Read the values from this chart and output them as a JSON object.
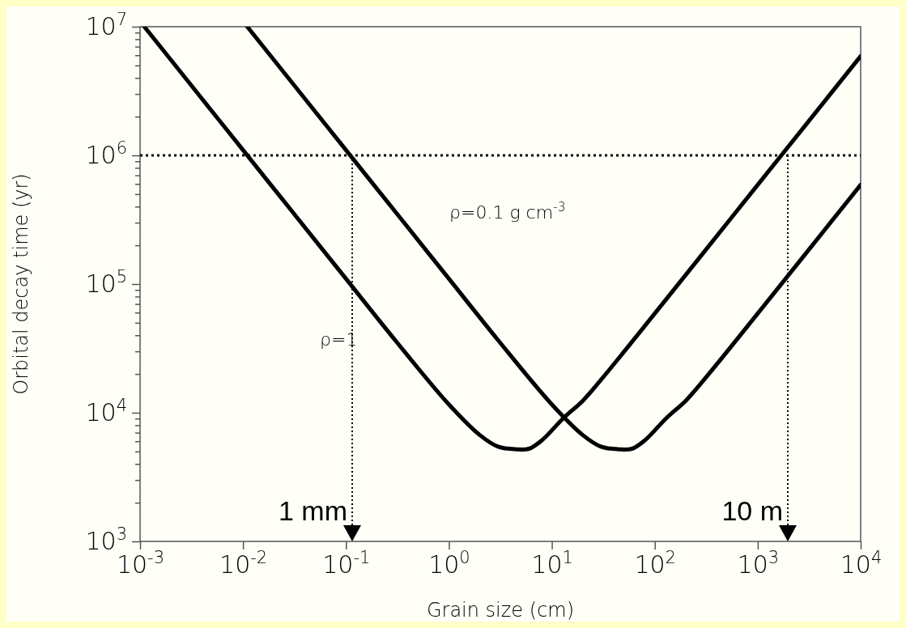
{
  "chart_data": {
    "type": "line",
    "xlabel": "Grain size (cm)",
    "ylabel": "Orbital decay time (yr)",
    "log": "xy",
    "xlim": [
      0.001,
      10000
    ],
    "ylim": [
      1000,
      10000000
    ],
    "xticks": [
      {
        "value": 0.001,
        "label": "10$^{-3}$"
      },
      {
        "value": 0.01,
        "label": "10$^{-2}$"
      },
      {
        "value": 0.1,
        "label": "10$^{-1}$"
      },
      {
        "value": 1,
        "label": "10$^{0}$"
      },
      {
        "value": 10,
        "label": "10$^{1}$"
      },
      {
        "value": 100,
        "label": "10$^{2}$"
      },
      {
        "value": 1000,
        "label": "10$^{3}$"
      },
      {
        "value": 10000,
        "label": "10$^{4}$"
      }
    ],
    "yticks": [
      {
        "value": 1000,
        "label": "10$^{3}$"
      },
      {
        "value": 2000,
        "label": null
      },
      {
        "value": 3000,
        "label": null
      },
      {
        "value": 4000,
        "label": null
      },
      {
        "value": 5000,
        "label": null
      },
      {
        "value": 6000,
        "label": null
      },
      {
        "value": 7000,
        "label": null
      },
      {
        "value": 8000,
        "label": null
      },
      {
        "value": 9000,
        "label": null
      },
      {
        "value": 10000,
        "label": "10$^{4}$"
      },
      {
        "value": 20000,
        "label": null
      },
      {
        "value": 30000,
        "label": null
      },
      {
        "value": 40000,
        "label": null
      },
      {
        "value": 50000,
        "label": null
      },
      {
        "value": 60000,
        "label": null
      },
      {
        "value": 70000,
        "label": null
      },
      {
        "value": 80000,
        "label": null
      },
      {
        "value": 90000,
        "label": null
      },
      {
        "value": 100000,
        "label": "10$^{5}$"
      },
      {
        "value": 200000,
        "label": null
      },
      {
        "value": 300000,
        "label": null
      },
      {
        "value": 400000,
        "label": null
      },
      {
        "value": 500000,
        "label": null
      },
      {
        "value": 600000,
        "label": null
      },
      {
        "value": 700000,
        "label": null
      },
      {
        "value": 800000,
        "label": null
      },
      {
        "value": 900000,
        "label": null
      },
      {
        "value": 1000000,
        "label": "10$^{6}$"
      },
      {
        "value": 2000000,
        "label": null
      },
      {
        "value": 3000000,
        "label": null
      },
      {
        "value": 4000000,
        "label": null
      },
      {
        "value": 5000000,
        "label": null
      },
      {
        "value": 6000000,
        "label": null
      },
      {
        "value": 7000000,
        "label": null
      },
      {
        "value": 8000000,
        "label": null
      },
      {
        "value": 9000000,
        "label": null
      },
      {
        "value": 10000000,
        "label": "10$^{7}$"
      }
    ],
    "series": [
      {
        "color": "#000000",
        "x": [
          0.0011,
          0.003,
          0.01,
          0.03,
          0.1,
          0.3,
          1,
          2,
          3,
          4.5,
          6,
          8,
          13,
          20,
          30,
          100,
          300,
          1000,
          3000,
          10000
        ],
        "values": [
          10000000,
          3670000,
          1100000,
          367000,
          110000,
          36700,
          11600,
          6700,
          5450,
          5200,
          5250,
          6100,
          9100,
          12400,
          18000,
          59000,
          177000,
          590000,
          1770000,
          5900000
        ]
      },
      {
        "color": "#000000",
        "x": [
          0.011,
          0.03,
          0.1,
          0.3,
          1,
          3,
          10,
          20,
          30,
          45,
          60,
          80,
          130,
          200,
          300,
          1000,
          3000,
          10000
        ],
        "values": [
          10000000,
          3670000,
          1100000,
          367000,
          110000,
          36700,
          11600,
          6700,
          5450,
          5200,
          5250,
          6100,
          9100,
          12400,
          18000,
          59000,
          177000,
          590000
        ]
      }
    ],
    "ref_lines": [
      {
        "axis": "y",
        "value": 1000000,
        "color": "#000000",
        "line_style": "dotted"
      }
    ],
    "annotations": [
      "ρ=1",
      "ρ=0.1 g cm$^{-3}$",
      "1 mm",
      "10 m"
    ]
  }
}
